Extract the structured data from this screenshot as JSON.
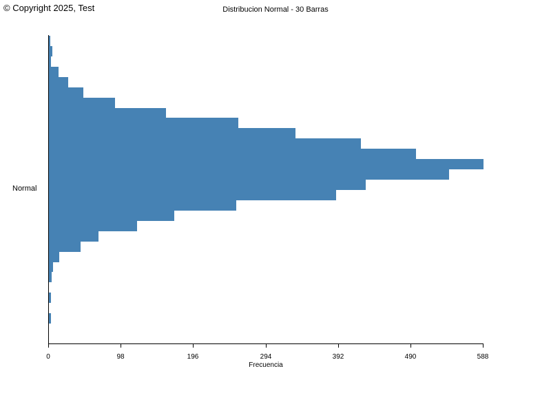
{
  "header": {
    "copyright": "© Copyright 2025, Test",
    "title": "Distribucion Normal - 30 Barras"
  },
  "chart_data": {
    "type": "bar",
    "orientation": "horizontal",
    "title": "Distribucion Normal - 30 Barras",
    "category_label": "Normal",
    "xlabel": "Frecuencia",
    "x_ticks": [
      0,
      98,
      196,
      294,
      392,
      490,
      588
    ],
    "xlim": [
      0,
      588
    ],
    "num_bars": 30,
    "bar_color": "#4682b4",
    "axis_color": "#000000",
    "background_color": "#ffffff",
    "grid": false,
    "legend": "none",
    "values": [
      2,
      5,
      3,
      13,
      26,
      47,
      89,
      158,
      256,
      334,
      422,
      497,
      588,
      541,
      429,
      389,
      253,
      170,
      119,
      67,
      43,
      14,
      6,
      4,
      0,
      3,
      0,
      3,
      0,
      0
    ]
  }
}
